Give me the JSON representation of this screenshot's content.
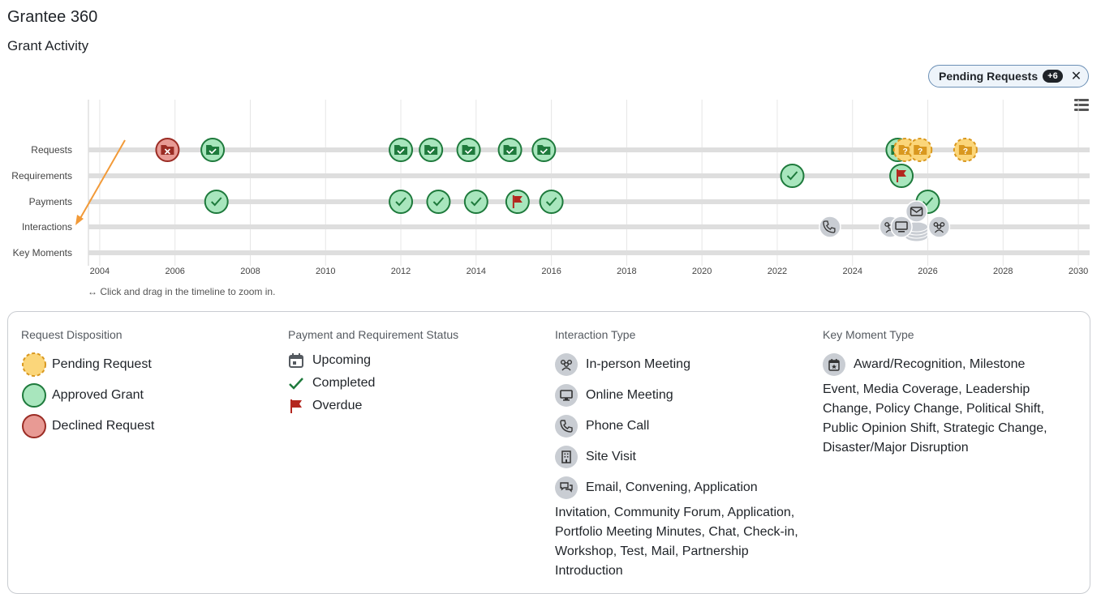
{
  "header": {
    "page_title": "Grantee 360",
    "section_title": "Grant Activity"
  },
  "filter_chip": {
    "label": "Pending Requests",
    "count": "+6",
    "close_glyph": "✕"
  },
  "menu": {
    "icon": "hamburger-menu-icon"
  },
  "timeline": {
    "rows": [
      "Requests",
      "Requirements",
      "Payments",
      "Interactions",
      "Key Moments"
    ],
    "x_ticks": [
      "2004",
      "2006",
      "2008",
      "2010",
      "2012",
      "2014",
      "2016",
      "2018",
      "2020",
      "2022",
      "2024",
      "2026",
      "2028",
      "2030"
    ],
    "x_range": [
      2003.7,
      2030.3
    ],
    "hint": "↔ Click and drag in the timeline to zoom in.",
    "colors": {
      "approved_fill": "#a8e6bd",
      "approved_stroke": "#1e7a3c",
      "declined_fill": "#e89a94",
      "declined_stroke": "#9b2c24",
      "pending_fill": "#fbd67a",
      "pending_stroke": "#d9981f",
      "interaction_fill": "#c9cdd3",
      "flag": "#b3261e",
      "track": "#dedede",
      "annotation_arrow": "#f29a38"
    },
    "events": [
      {
        "row": "Requests",
        "year": 2005.8,
        "kind": "declined"
      },
      {
        "row": "Requests",
        "year": 2007.0,
        "kind": "approved"
      },
      {
        "row": "Requests",
        "year": 2012.0,
        "kind": "approved"
      },
      {
        "row": "Requests",
        "year": 2012.8,
        "kind": "approved"
      },
      {
        "row": "Requests",
        "year": 2013.8,
        "kind": "approved"
      },
      {
        "row": "Requests",
        "year": 2014.9,
        "kind": "approved"
      },
      {
        "row": "Requests",
        "year": 2015.8,
        "kind": "approved"
      },
      {
        "row": "Requests",
        "year": 2025.2,
        "kind": "approved"
      },
      {
        "row": "Requests",
        "year": 2025.4,
        "kind": "pending"
      },
      {
        "row": "Requests",
        "year": 2025.8,
        "kind": "pending"
      },
      {
        "row": "Requests",
        "year": 2027.0,
        "kind": "pending"
      },
      {
        "row": "Requirements",
        "year": 2022.4,
        "kind": "completed"
      },
      {
        "row": "Requirements",
        "year": 2025.3,
        "kind": "overdue"
      },
      {
        "row": "Payments",
        "year": 2007.1,
        "kind": "completed"
      },
      {
        "row": "Payments",
        "year": 2012.0,
        "kind": "completed"
      },
      {
        "row": "Payments",
        "year": 2013.0,
        "kind": "completed"
      },
      {
        "row": "Payments",
        "year": 2014.0,
        "kind": "completed"
      },
      {
        "row": "Payments",
        "year": 2015.1,
        "kind": "overdue"
      },
      {
        "row": "Payments",
        "year": 2016.0,
        "kind": "completed"
      },
      {
        "row": "Payments",
        "year": 2026.0,
        "kind": "completed"
      },
      {
        "row": "Interactions",
        "year": 2023.4,
        "kind": "phone-call"
      },
      {
        "row": "Interactions",
        "year": 2025.0,
        "kind": "in-person-meeting"
      },
      {
        "row": "Interactions",
        "year": 2025.3,
        "kind": "online-meeting"
      },
      {
        "row": "Interactions",
        "year": 2025.7,
        "kind": "email"
      },
      {
        "row": "Interactions",
        "year": 2026.3,
        "kind": "in-person-meeting"
      }
    ]
  },
  "legend": {
    "request_disposition": {
      "heading": "Request Disposition",
      "items": [
        "Pending Request",
        "Approved Grant",
        "Declined Request"
      ]
    },
    "status": {
      "heading": "Payment and Requirement Status",
      "items": [
        "Upcoming",
        "Completed",
        "Overdue"
      ]
    },
    "interaction": {
      "heading": "Interaction Type",
      "items": [
        "In-person Meeting",
        "Online Meeting",
        "Phone Call",
        "Site Visit"
      ],
      "other_lead": "Email, Convening, Application",
      "other_rest": "Invitation, Community Forum, Application, Portfolio Meeting Minutes, Chat, Check-in, Workshop, Test, Mail, Partnership Introduction"
    },
    "key_moment": {
      "heading": "Key Moment Type",
      "lead": "Award/Recognition, Milestone",
      "rest": "Event, Media Coverage, Leadership Change, Policy Change, Political Shift, Public Opinion Shift, Strategic Change, Disaster/Major Disruption"
    }
  }
}
